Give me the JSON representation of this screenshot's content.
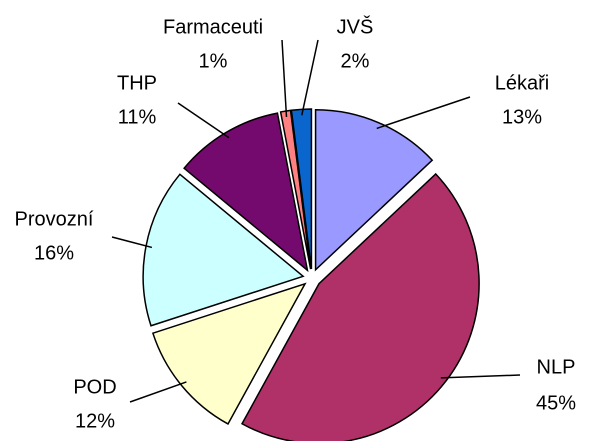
{
  "chart_data": {
    "type": "pie",
    "categories": [
      "Lékaři",
      "NLP",
      "POD",
      "Provozní",
      "THP",
      "Farmaceuti",
      "JVŠ"
    ],
    "values": [
      13,
      45,
      12,
      16,
      11,
      1,
      2
    ],
    "value_labels": [
      "13%",
      "45%",
      "12%",
      "16%",
      "11%",
      "1%",
      "2%"
    ],
    "colors": [
      "#9999ff",
      "#b03068",
      "#ffffcc",
      "#ccffff",
      "#750a6e",
      "#ff8080",
      "#0a66cc"
    ]
  }
}
